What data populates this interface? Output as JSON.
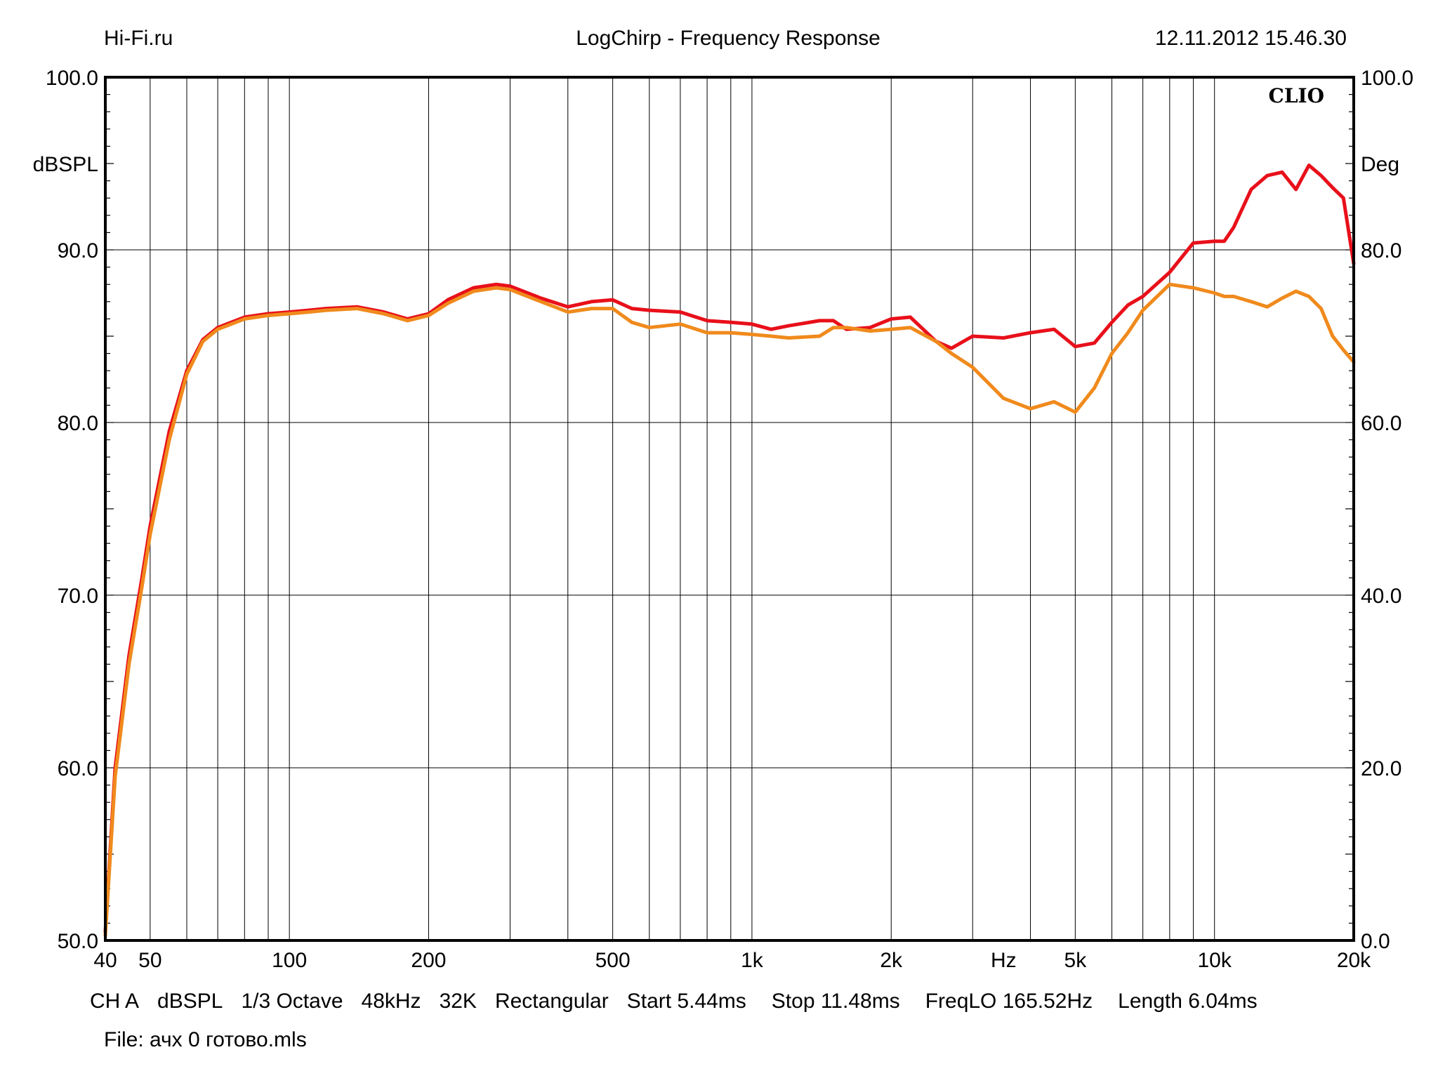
{
  "header": {
    "left": "Hi-Fi.ru",
    "center": "LogChirp - Frequency Response",
    "right": "12.11.2012 15.46.30"
  },
  "watermark": "CLIO",
  "footer": {
    "items": [
      "CH A",
      "dBSPL",
      "1/3 Octave",
      "48kHz",
      "32K",
      "Rectangular",
      "Start 5.44ms",
      "Stop 11.48ms",
      "FreqLO 165.52Hz",
      "Length 6.04ms"
    ],
    "file": "File: ачх 0 готово.mls"
  },
  "chart_data": {
    "type": "line",
    "title": "LogChirp - Frequency Response",
    "xlabel": "Hz",
    "ylabel": "dBSPL",
    "y2label": "Deg",
    "x_scale": "log",
    "xlim": [
      40,
      20000
    ],
    "ylim": [
      50,
      100
    ],
    "y2lim": [
      0,
      100
    ],
    "grid": true,
    "x_ticks": [
      40,
      50,
      100,
      200,
      500,
      1000,
      2000,
      5000,
      10000,
      20000
    ],
    "x_tick_labels": [
      "40",
      "50",
      "100",
      "200",
      "500",
      "1k",
      "2k",
      "5k",
      "10k",
      "20k"
    ],
    "y_ticks": [
      50,
      60,
      70,
      80,
      90,
      100
    ],
    "y_tick_labels": [
      "50.0",
      "60.0",
      "70.0",
      "80.0",
      "90.0",
      "100.0"
    ],
    "y2_tick_labels": [
      "0.0",
      "20.0",
      "40.0",
      "60.0",
      "80.0",
      "100.0"
    ],
    "series": [
      {
        "color": "#e8101a",
        "x": [
          40,
          42,
          45,
          48,
          50,
          55,
          60,
          65,
          70,
          80,
          90,
          100,
          110,
          120,
          140,
          160,
          180,
          200,
          220,
          250,
          280,
          300,
          350,
          400,
          450,
          500,
          550,
          600,
          700,
          800,
          900,
          1000,
          1100,
          1200,
          1400,
          1500,
          1600,
          1800,
          2000,
          2200,
          2500,
          2700,
          3000,
          3500,
          4000,
          4500,
          5000,
          5500,
          6000,
          6500,
          7000,
          8000,
          9000,
          10000,
          10500,
          11000,
          12000,
          13000,
          14000,
          15000,
          16000,
          17000,
          18000,
          19000,
          20000
        ],
        "y": [
          50.5,
          60,
          66.5,
          71,
          74,
          79.5,
          83,
          84.8,
          85.5,
          86.1,
          86.3,
          86.4,
          86.5,
          86.6,
          86.7,
          86.4,
          86.0,
          86.3,
          87.1,
          87.8,
          88.0,
          87.9,
          87.2,
          86.7,
          87.0,
          87.1,
          86.6,
          86.5,
          86.4,
          85.9,
          85.8,
          85.7,
          85.4,
          85.6,
          85.9,
          85.9,
          85.4,
          85.5,
          86.0,
          86.1,
          84.7,
          84.3,
          85.0,
          84.9,
          85.2,
          85.4,
          84.4,
          84.6,
          85.8,
          86.8,
          87.3,
          88.7,
          90.4,
          90.5,
          90.5,
          91.3,
          93.5,
          94.3,
          94.5,
          93.5,
          94.9,
          94.3,
          93.6,
          93.0,
          89.2
        ]
      },
      {
        "color": "#f08a1c",
        "x": [
          40,
          42,
          45,
          48,
          50,
          55,
          60,
          65,
          70,
          80,
          90,
          100,
          110,
          120,
          140,
          160,
          180,
          200,
          220,
          250,
          280,
          300,
          350,
          400,
          450,
          500,
          550,
          600,
          700,
          800,
          900,
          1000,
          1100,
          1200,
          1400,
          1500,
          1600,
          1800,
          2000,
          2200,
          2500,
          2700,
          3000,
          3500,
          4000,
          4500,
          5000,
          5500,
          6000,
          6500,
          7000,
          8000,
          9000,
          10000,
          10500,
          11000,
          12000,
          13000,
          14000,
          15000,
          16000,
          17000,
          18000,
          19000,
          20000
        ],
        "y": [
          50.3,
          59.5,
          66,
          70.5,
          73.5,
          79,
          82.8,
          84.7,
          85.4,
          86.0,
          86.2,
          86.3,
          86.4,
          86.5,
          86.6,
          86.3,
          85.9,
          86.2,
          86.9,
          87.6,
          87.8,
          87.7,
          87.0,
          86.4,
          86.6,
          86.6,
          85.8,
          85.5,
          85.7,
          85.2,
          85.2,
          85.1,
          85.0,
          84.9,
          85.0,
          85.5,
          85.5,
          85.3,
          85.4,
          85.5,
          84.7,
          84.0,
          83.2,
          81.4,
          80.8,
          81.2,
          80.6,
          82.0,
          84.0,
          85.2,
          86.5,
          88.0,
          87.8,
          87.5,
          87.3,
          87.3,
          87.0,
          86.7,
          87.2,
          87.6,
          87.3,
          86.6,
          85.0,
          84.2,
          83.5
        ]
      }
    ]
  }
}
